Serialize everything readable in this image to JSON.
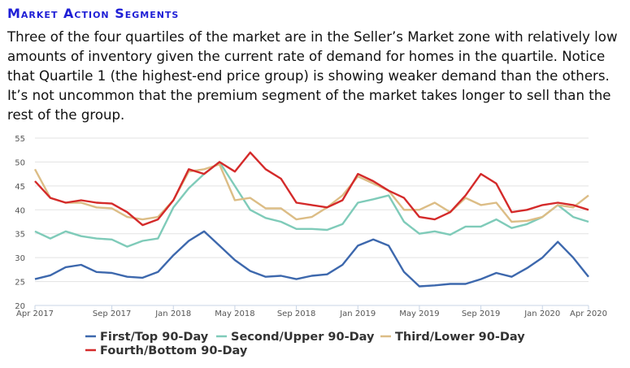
{
  "title": "Market Action Segments",
  "description": "Three of the four quartiles of the market are in the Seller’s Market zone with relatively low amounts of inventory given the current rate of demand for homes in the quartile. Notice that Quartile 1 (the highest-end price group) is showing weaker demand than the others. It’s not uncommon that the premium segment of the market takes longer to sell than the rest of the group.",
  "chart_data": {
    "type": "line",
    "title": "",
    "xlabel": "",
    "ylabel": "",
    "ylim": [
      20,
      55
    ],
    "yticks": [
      20,
      25,
      30,
      35,
      40,
      45,
      50,
      55
    ],
    "x": [
      "Apr 2017",
      "May 2017",
      "Jun 2017",
      "Jul 2017",
      "Aug 2017",
      "Sep 2017",
      "Oct 2017",
      "Nov 2017",
      "Dec 2017",
      "Jan 2018",
      "Feb 2018",
      "Mar 2018",
      "Apr 2018",
      "May 2018",
      "Jun 2018",
      "Jul 2018",
      "Aug 2018",
      "Sep 2018",
      "Oct 2018",
      "Nov 2018",
      "Dec 2018",
      "Jan 2019",
      "Feb 2019",
      "Mar 2019",
      "Apr 2019",
      "May 2019",
      "Jun 2019",
      "Jul 2019",
      "Aug 2019",
      "Sep 2019",
      "Oct 2019",
      "Nov 2019",
      "Dec 2019",
      "Jan 2020",
      "Feb 2020",
      "Mar 2020",
      "Apr 2020"
    ],
    "xticks": [
      {
        "label": "Apr 2017",
        "index": 0
      },
      {
        "label": "Sep 2017",
        "index": 5
      },
      {
        "label": "Jan 2018",
        "index": 9
      },
      {
        "label": "May 2018",
        "index": 13
      },
      {
        "label": "Sep 2018",
        "index": 17
      },
      {
        "label": "Jan 2019",
        "index": 21
      },
      {
        "label": "May 2019",
        "index": 25
      },
      {
        "label": "Sep 2019",
        "index": 29
      },
      {
        "label": "Jan 2020",
        "index": 33
      },
      {
        "label": "Apr 2020",
        "index": 36
      }
    ],
    "grid": true,
    "legend_position": "bottom",
    "series": [
      {
        "name": "First/Top 90-Day",
        "color": "#3d68ad",
        "values": [
          25.5,
          26.3,
          28.0,
          28.5,
          27.0,
          26.8,
          26.0,
          25.8,
          27.0,
          30.5,
          33.5,
          35.5,
          32.5,
          29.5,
          27.2,
          26.0,
          26.2,
          25.5,
          26.2,
          26.5,
          28.5,
          32.5,
          33.8,
          32.5,
          27.0,
          24.0,
          24.2,
          24.5,
          24.5,
          25.5,
          26.8,
          26.0,
          27.8,
          30.0,
          33.3,
          30.0,
          26.0
        ]
      },
      {
        "name": "Second/Upper 90-Day",
        "color": "#7fcbb9",
        "values": [
          35.5,
          34.0,
          35.5,
          34.5,
          34.0,
          33.8,
          32.3,
          33.5,
          34.0,
          40.5,
          44.5,
          47.5,
          50.0,
          45.0,
          40.0,
          38.3,
          37.5,
          36.0,
          36.0,
          35.8,
          37.0,
          41.5,
          42.2,
          43.0,
          37.5,
          35.0,
          35.5,
          34.8,
          36.5,
          36.5,
          38.0,
          36.2,
          37.0,
          38.5,
          41.0,
          38.5,
          37.5
        ]
      },
      {
        "name": "Third/Lower 90-Day",
        "color": "#dcbd86",
        "values": [
          48.5,
          42.5,
          41.5,
          41.5,
          40.5,
          40.3,
          38.5,
          38.0,
          38.5,
          42.0,
          48.0,
          48.5,
          49.5,
          42.0,
          42.5,
          40.3,
          40.3,
          38.0,
          38.5,
          40.5,
          43.0,
          47.0,
          45.5,
          44.0,
          40.0,
          40.0,
          41.5,
          39.5,
          42.5,
          41.0,
          41.5,
          37.5,
          37.7,
          38.5,
          41.0,
          40.5,
          43.0
        ]
      },
      {
        "name": "Fourth/Bottom 90-Day",
        "color": "#d42a2a",
        "values": [
          46.0,
          42.5,
          41.5,
          42.0,
          41.5,
          41.3,
          39.5,
          36.8,
          38.0,
          42.0,
          48.5,
          47.5,
          50.0,
          48.0,
          52.0,
          48.5,
          46.5,
          41.5,
          41.0,
          40.5,
          42.0,
          47.5,
          46.0,
          44.0,
          42.5,
          38.5,
          38.0,
          39.5,
          43.0,
          47.5,
          45.5,
          39.5,
          40.0,
          41.0,
          41.5,
          41.0,
          40.0
        ]
      }
    ]
  }
}
